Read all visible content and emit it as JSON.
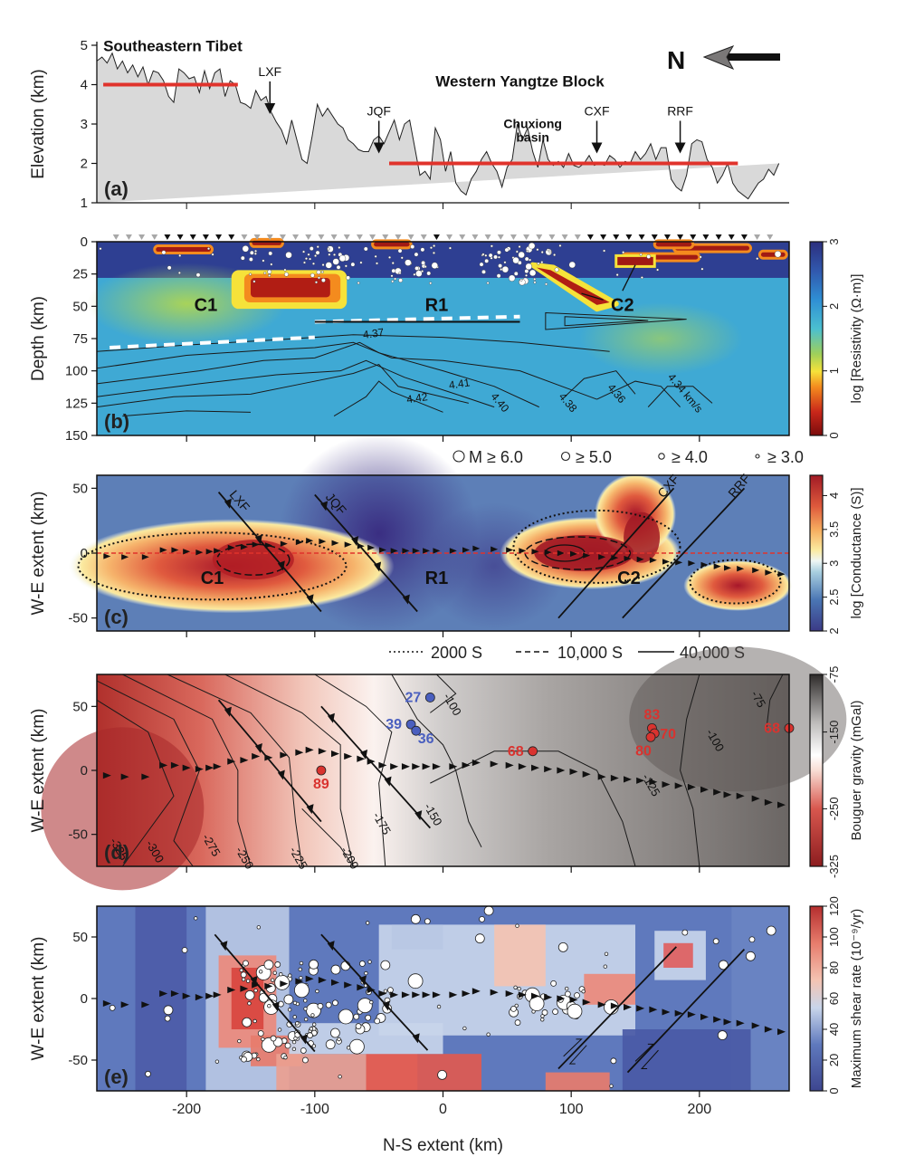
{
  "chart_data": [
    {
      "panel": "a",
      "type": "area",
      "ylabel": "Elevation (km)",
      "ylim": [
        1,
        5
      ],
      "yticks": [
        1,
        2,
        3,
        4,
        5
      ],
      "xlim": [
        -270,
        270
      ],
      "panel_label": "(a)",
      "regions": [
        {
          "label": "Southeastern Tibet",
          "x": -265,
          "y": 4.85
        },
        {
          "label": "Western Yangtze Block",
          "x": 60,
          "y": 3.95
        },
        {
          "label": "Chuxiong",
          "x": 70,
          "y": 2.9
        },
        {
          "label": "basin",
          "x": 70,
          "y": 2.55
        }
      ],
      "faults": [
        {
          "label": "LXF",
          "x": -135,
          "arrow_tip": 3.3
        },
        {
          "label": "JQF",
          "x": -50,
          "arrow_tip": 2.3
        },
        {
          "label": "CXF",
          "x": 120,
          "arrow_tip": 2.3
        },
        {
          "label": "RRF",
          "x": 185,
          "arrow_tip": 2.3
        }
      ],
      "mean_lines": [
        {
          "x0": -265,
          "x1": -160,
          "y": 4.0
        },
        {
          "x0": -42,
          "x1": 230,
          "y": 2.0
        }
      ],
      "north_label": "N",
      "profile_x": [
        -270,
        -266,
        -262,
        -258,
        -254,
        -250,
        -246,
        -242,
        -238,
        -234,
        -230,
        -226,
        -222,
        -218,
        -214,
        -210,
        -206,
        -202,
        -198,
        -194,
        -190,
        -186,
        -182,
        -178,
        -174,
        -170,
        -166,
        -162,
        -158,
        -154,
        -150,
        -146,
        -142,
        -138,
        -134,
        -130,
        -126,
        -122,
        -118,
        -114,
        -110,
        -106,
        -102,
        -98,
        -94,
        -90,
        -86,
        -82,
        -78,
        -74,
        -70,
        -66,
        -62,
        -58,
        -54,
        -50,
        -46,
        -42,
        -38,
        -34,
        -30,
        -26,
        -22,
        -18,
        -14,
        -10,
        -6,
        -2,
        2,
        6,
        10,
        14,
        18,
        22,
        26,
        30,
        34,
        38,
        42,
        46,
        50,
        54,
        58,
        62,
        66,
        70,
        74,
        78,
        82,
        86,
        90,
        94,
        98,
        102,
        106,
        110,
        114,
        118,
        122,
        126,
        130,
        134,
        138,
        142,
        146,
        150,
        154,
        158,
        162,
        166,
        170,
        174,
        178,
        182,
        186,
        190,
        194,
        198,
        202,
        206,
        210,
        214,
        218,
        222,
        226,
        230,
        234,
        238,
        242,
        246,
        250,
        254,
        258,
        262,
        266,
        270
      ],
      "profile_elev": [
        4.6,
        4.7,
        4.55,
        4.8,
        4.4,
        4.6,
        4.3,
        4.5,
        4.2,
        4.45,
        4.0,
        4.35,
        4.3,
        4.1,
        3.7,
        3.55,
        4.4,
        4.3,
        4.15,
        4.2,
        3.8,
        4.35,
        3.9,
        4.3,
        4.4,
        3.7,
        4.1,
        4.0,
        3.55,
        3.5,
        3.4,
        3.85,
        3.6,
        3.7,
        3.3,
        3.05,
        2.85,
        2.5,
        3.1,
        2.6,
        2.1,
        2.0,
        2.7,
        3.5,
        3.2,
        3.4,
        3.2,
        3.0,
        2.9,
        2.6,
        2.5,
        2.35,
        2.3,
        2.3,
        2.6,
        2.7,
        2.5,
        2.8,
        3.1,
        2.6,
        3.0,
        3.1,
        2.4,
        1.7,
        1.8,
        1.6,
        2.9,
        2.6,
        1.8,
        2.3,
        1.5,
        1.3,
        1.2,
        1.6,
        1.8,
        2.1,
        2.3,
        2.0,
        1.8,
        1.4,
        1.9,
        2.1,
        3.0,
        2.6,
        2.9,
        2.3,
        1.9,
        2.6,
        2.1,
        1.95,
        2.05,
        1.9,
        2.25,
        1.95,
        1.9,
        2.0,
        2.2,
        1.95,
        2.0,
        1.95,
        2.2,
        2.1,
        1.9,
        2.05,
        2.0,
        2.3,
        2.1,
        2.25,
        2.5,
        2.1,
        2.4,
        2.4,
        1.6,
        1.4,
        1.3,
        1.7,
        2.5,
        2.6,
        2.55,
        2.1,
        1.9,
        1.5,
        1.7,
        2.0,
        1.5,
        1.3,
        1.2,
        1.1,
        1.3,
        1.5,
        1.6,
        1.85,
        1.7,
        2.0
      ]
    },
    {
      "panel": "b",
      "type": "heatmap",
      "ylabel": "Depth (km)",
      "ylim": [
        150,
        0
      ],
      "yticks": [
        0,
        25,
        50,
        75,
        100,
        125,
        150
      ],
      "xlim": [
        -270,
        270
      ],
      "panel_label": "(b)",
      "colorbar": {
        "label": "log [Resistivity (Ω·m)]",
        "ticks": [
          0,
          1,
          2,
          3
        ],
        "range": [
          0,
          3
        ]
      },
      "anomalies": [
        {
          "label": "C1",
          "x": -185,
          "y": 48
        },
        {
          "label": "R1",
          "x": -5,
          "y": 48
        },
        {
          "label": "C2",
          "x": 140,
          "y": 48
        }
      ],
      "velocity_contours": [
        "4.37",
        "4.42",
        "4.41",
        "4.40",
        "4.38",
        "4.36",
        "4.34 km/s"
      ],
      "velocity_contour_positions": [
        {
          "label": "4.37",
          "x": -62,
          "y": 75
        },
        {
          "label": "4.42",
          "x": -28,
          "y": 125
        },
        {
          "label": "4.41",
          "x": 5,
          "y": 114
        },
        {
          "label": "4.40",
          "x": 37,
          "y": 120
        },
        {
          "label": "4.38",
          "x": 90,
          "y": 120
        },
        {
          "label": "4.36",
          "x": 128,
          "y": 113
        },
        {
          "label": "4.34 km/s",
          "x": 175,
          "y": 105
        }
      ],
      "moho_dashed": [
        [
          -260,
          82
        ],
        [
          -100,
          74
        ],
        [
          -100,
          62
        ],
        [
          60,
          58
        ]
      ],
      "seismicity_legend": [
        "M ≥ 6.0",
        "≥ 5.0",
        "≥ 4.0",
        "≥ 3.0"
      ]
    },
    {
      "panel": "c",
      "type": "heatmap",
      "ylabel": "W-E extent (km)",
      "ylim": [
        -60,
        60
      ],
      "yticks": [
        -50,
        0,
        50
      ],
      "xlim": [
        -270,
        270
      ],
      "panel_label": "(c)",
      "colorbar": {
        "label": "log [Conductance (S)]",
        "ticks": [
          2.0,
          2.5,
          3.0,
          3.5,
          4.0
        ],
        "range": [
          2.0,
          4.3
        ]
      },
      "anomalies": [
        {
          "label": "C1",
          "x": -180,
          "y": -18
        },
        {
          "label": "R1",
          "x": -5,
          "y": -18
        },
        {
          "label": "C2",
          "x": 145,
          "y": -18
        }
      ],
      "faults": [
        {
          "label": "LXF",
          "x0": -175,
          "y0": 47,
          "x1": -95,
          "y1": -45
        },
        {
          "label": "JQF",
          "x0": -100,
          "y0": 45,
          "x1": -20,
          "y1": -45
        },
        {
          "label": "CXF",
          "x0": 90,
          "y0": -50,
          "x1": 180,
          "y1": 50
        },
        {
          "label": "RRF",
          "x0": 140,
          "y0": -50,
          "x1": 235,
          "y1": 50
        }
      ],
      "contour_legend": [
        "2000 S",
        "10,000 S",
        "40,000 S"
      ]
    },
    {
      "panel": "d",
      "type": "heatmap",
      "ylabel": "W-E extent (km)",
      "ylim": [
        -75,
        75
      ],
      "yticks": [
        -50,
        0,
        50
      ],
      "xlim": [
        -270,
        270
      ],
      "panel_label": "(d)",
      "colorbar": {
        "label": "Bouguer gravity (mGal)",
        "ticks": [
          -325,
          -250,
          -150,
          -75
        ],
        "range": [
          -325,
          -75
        ]
      },
      "contour_labels": [
        "-325",
        "-300",
        "-275",
        "-250",
        "-225",
        "-200",
        "-175",
        "-150",
        "-125",
        "-100",
        "-100",
        "-75"
      ],
      "contour_label_positions": [
        {
          "label": "-325",
          "x": -260,
          "y": -55
        },
        {
          "label": "-300",
          "x": -232,
          "y": -57
        },
        {
          "label": "-275",
          "x": -188,
          "y": -52
        },
        {
          "label": "-250",
          "x": -162,
          "y": -62
        },
        {
          "label": "-225",
          "x": -120,
          "y": -62
        },
        {
          "label": "-200",
          "x": -80,
          "y": -62
        },
        {
          "label": "-175",
          "x": -55,
          "y": -35
        },
        {
          "label": "-150",
          "x": -15,
          "y": -28
        },
        {
          "label": "-125",
          "x": 155,
          "y": -5
        },
        {
          "label": "-100",
          "x": 0,
          "y": 58
        },
        {
          "label": "-100",
          "x": 205,
          "y": 30
        },
        {
          "label": "-75",
          "x": 240,
          "y": 60
        }
      ],
      "stations": [
        {
          "label": "27",
          "x": -10,
          "y": 57,
          "color": "#4a5fbf"
        },
        {
          "label": "39",
          "x": -25,
          "y": 36,
          "color": "#4a5fbf"
        },
        {
          "label": "36",
          "x": -21,
          "y": 31,
          "color": "#4a5fbf"
        },
        {
          "label": "89",
          "x": -95,
          "y": 0,
          "color": "#d9332f"
        },
        {
          "label": "68",
          "x": 70,
          "y": 15,
          "color": "#d9332f"
        },
        {
          "label": "83",
          "x": 163,
          "y": 33,
          "color": "#d9332f"
        },
        {
          "label": "70",
          "x": 165,
          "y": 29,
          "color": "#d9332f"
        },
        {
          "label": "80",
          "x": 162,
          "y": 26,
          "color": "#d9332f"
        },
        {
          "label": "68",
          "x": 270,
          "y": 33,
          "color": "#d9332f"
        }
      ]
    },
    {
      "panel": "e",
      "type": "heatmap",
      "ylabel": "W-E extent (km)",
      "xlabel": "N-S extent (km)",
      "ylim": [
        -75,
        75
      ],
      "yticks": [
        -50,
        0,
        50
      ],
      "xlim": [
        -270,
        270
      ],
      "xticks": [
        -200,
        -100,
        0,
        100,
        200
      ],
      "panel_label": "(e)",
      "colorbar": {
        "label": "Maximum shear rate  (10⁻⁹/yr)",
        "ticks": [
          0,
          20,
          40,
          60,
          80,
          100,
          120
        ],
        "range": [
          0,
          120
        ]
      }
    }
  ],
  "figure": {
    "x_axis_label": "N-S extent (km)",
    "x_tick_labels": [
      "-200",
      "-100",
      "0",
      "100",
      "200"
    ]
  }
}
